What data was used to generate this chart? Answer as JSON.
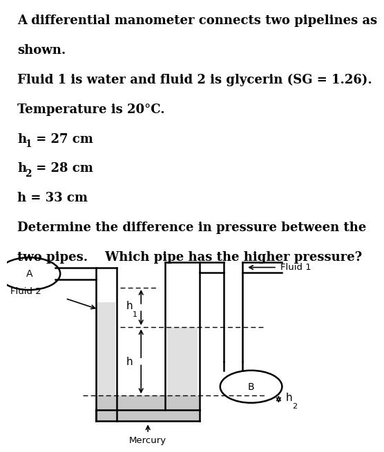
{
  "text_lines": [
    "A differential manometer connects two pipelines as",
    "shown.",
    "Fluid 1 is water and fluid 2 is glycerin (SG = 1.26).",
    "Temperature is 20°C.",
    "h_1 = 27 cm",
    "h_2 = 28 cm",
    "h = 33 cm",
    "Determine the difference in pressure between the",
    "two pipes.    Which pipe has the higher pressure?"
  ],
  "bg_color": "#ffffff",
  "text_color": "#000000",
  "diagram_fill_gray": "#c8c8c8",
  "diagram_fill_light": "#e0e0e0",
  "wall_color": "#000000",
  "lw": 1.8
}
